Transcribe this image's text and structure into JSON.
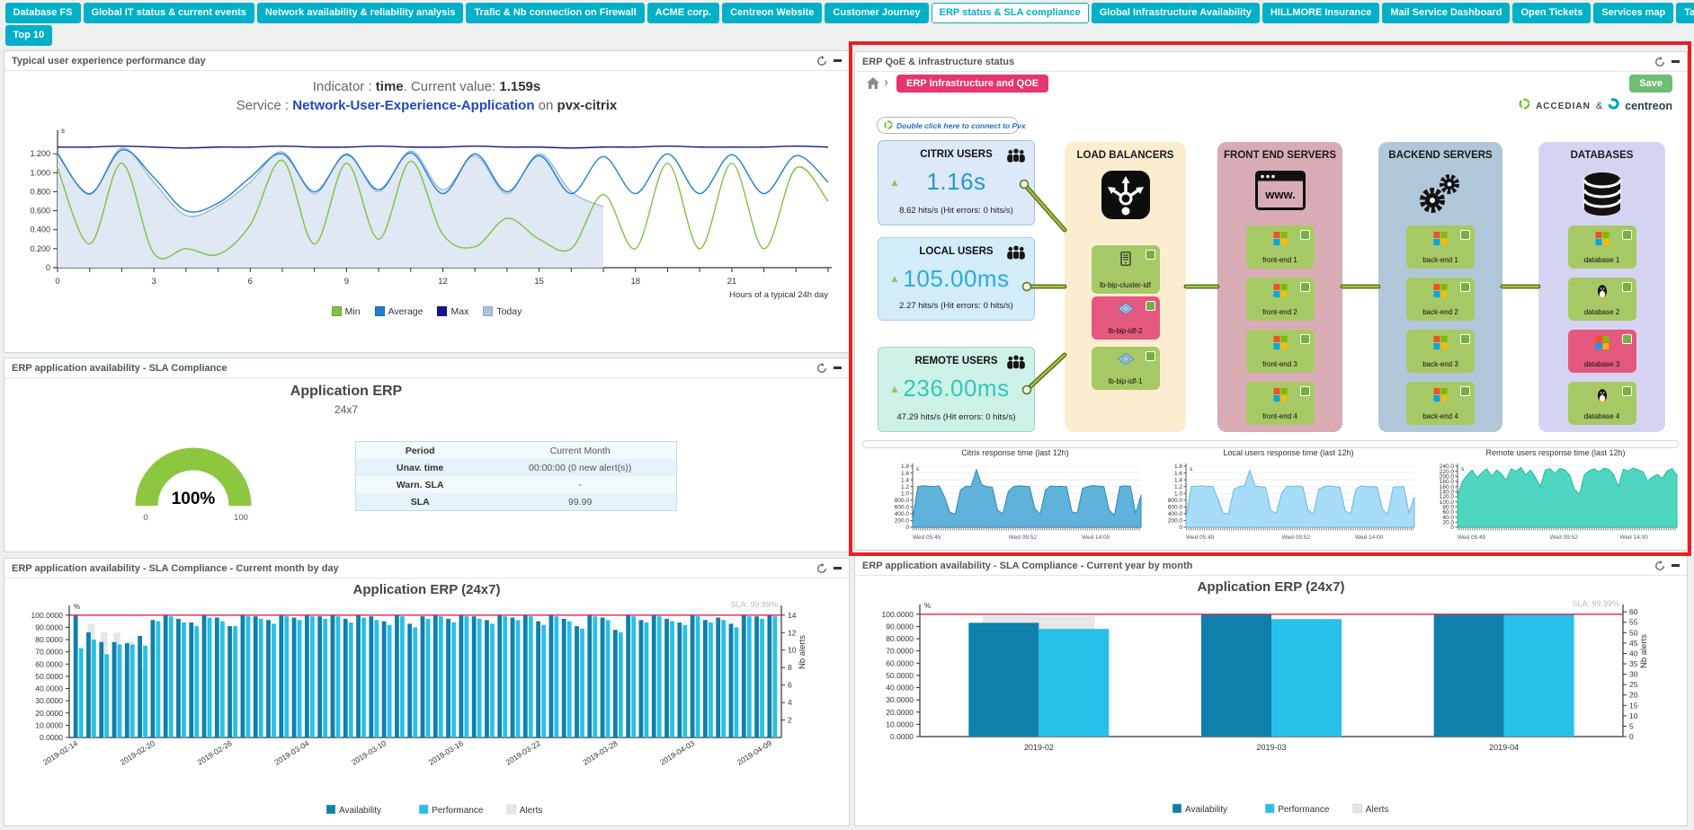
{
  "nav": {
    "active_tab": "ERP status & SLA compliance",
    "tabs_row1": [
      {
        "label": "Database FS"
      },
      {
        "label": "Global IT status & current events"
      },
      {
        "label": "Network availability & reliability analysis"
      },
      {
        "label": "Trafic & Nb connection on Firewall"
      },
      {
        "label": "ACME corp."
      },
      {
        "label": "Centreon Website"
      },
      {
        "label": "Customer Journey"
      },
      {
        "label": "ERP status & SLA compliance"
      },
      {
        "label": "Global Infrastructure Availability"
      },
      {
        "label": "HILLMORE Insurance"
      },
      {
        "label": "Mail Service Dashboard"
      },
      {
        "label": "Open Tickets"
      },
      {
        "label": "Services map"
      },
      {
        "label": "Tactical Overview"
      }
    ],
    "tabs_row2": [
      {
        "label": "Top 10"
      }
    ]
  },
  "panel_typical": {
    "title": "Typical user experience performance day",
    "line1_prefix": "Indicator : ",
    "line1_bold1": "time",
    "line1_mid": ". Current value: ",
    "line1_bold2": "1.159s",
    "line2_prefix": "Service : ",
    "line2_link": "Network-User-Experience-Application",
    "line2_mid": " on ",
    "line2_bold": "pvx-citrix"
  },
  "panel_sla": {
    "title": "ERP application availability - SLA Compliance",
    "chart_title": "Application ERP",
    "chart_subtitle": "24x7",
    "table": {
      "rows": [
        [
          "Period",
          "Current Month"
        ],
        [
          "Unav. time",
          "00:00:00 (0 new alert(s))"
        ],
        [
          "Warn. SLA",
          "-"
        ],
        [
          "SLA",
          "99.99"
        ]
      ]
    }
  },
  "panel_monthday": {
    "title": "ERP application availability - SLA Compliance - Current month by day",
    "chart_title": "Application ERP (24x7)"
  },
  "panel_yearmonth": {
    "title": "ERP application availability - SLA Compliance - Current year by month",
    "chart_title": "Application ERP (24x7)"
  },
  "panel_qoe": {
    "title": "ERP QoE & infrastructure status",
    "breadcrumb": "ERP Infrastructure and QOE",
    "save_label": "Save",
    "accedian": "ACCEDIAN",
    "ampersand": "&",
    "centreon": "centreon",
    "connect_label": "Double click here to connect to Pvx",
    "user_groups": [
      {
        "name": "CITRIX USERS",
        "value": "1.16s",
        "sub": "8.62 hits/s (Hit errors: 0 hits/s)",
        "bg": "#dbe9f9",
        "border": "#9fc3dd",
        "value_color": "#2796d8"
      },
      {
        "name": "LOCAL USERS",
        "value": "105.00ms",
        "sub": "2.27 hits/s (Hit errors: 0 hits/s)",
        "bg": "#d2ecfa",
        "border": "#9fd0e8",
        "value_color": "#2aabe0"
      },
      {
        "name": "REMOTE USERS",
        "value": "236.00ms",
        "sub": "47.29 hits/s (Hit errors: 0 hits/s)",
        "bg": "#cdf1e7",
        "border": "#96d8c6",
        "value_color": "#2fc9b6"
      }
    ],
    "columns": [
      {
        "title": "LOAD BALANCERS",
        "bg": "#fcedd0",
        "icon": "load-balancer",
        "nodes": [
          {
            "label": "lb-bip-cluster-idf",
            "icon": "server",
            "state": "ok"
          },
          {
            "label": "lb-bip-idf-2",
            "icon": "vip",
            "state": "critical"
          },
          {
            "label": "lb-bip-idf-1",
            "icon": "vip",
            "state": "ok"
          }
        ]
      },
      {
        "title": "FRONT END SERVERS",
        "bg": "#d9abb4",
        "icon": "browser",
        "nodes": [
          {
            "label": "front-end 1",
            "icon": "windows",
            "state": "ok"
          },
          {
            "label": "front-end 2",
            "icon": "windows",
            "state": "ok"
          },
          {
            "label": "front-end 3",
            "icon": "windows",
            "state": "ok"
          },
          {
            "label": "front-end 4",
            "icon": "windows",
            "state": "ok"
          }
        ]
      },
      {
        "title": "BACKEND SERVERS",
        "bg": "#afc7d8",
        "icon": "gears",
        "nodes": [
          {
            "label": "back-end 1",
            "icon": "windows",
            "state": "ok"
          },
          {
            "label": "back-end 2",
            "icon": "windows",
            "state": "ok"
          },
          {
            "label": "back-end 3",
            "icon": "windows",
            "state": "ok"
          },
          {
            "label": "back-end 4",
            "icon": "windows",
            "state": "ok"
          }
        ]
      },
      {
        "title": "DATABASES",
        "bg": "#d4d4f2",
        "icon": "database",
        "nodes": [
          {
            "label": "database 1",
            "icon": "windows",
            "state": "ok"
          },
          {
            "label": "database 2",
            "icon": "linux",
            "state": "ok"
          },
          {
            "label": "database 3",
            "icon": "windows",
            "state": "critical"
          },
          {
            "label": "database 4",
            "icon": "linux",
            "state": "ok"
          }
        ]
      }
    ]
  },
  "colors": {
    "accent_teal": "#00b0c8",
    "min": "#7dc242",
    "average": "#1f7ed0",
    "max": "#16168c",
    "today": "#a9c3e0",
    "availability": "#0f7fab",
    "performance": "#27c0e8",
    "alerts": "#e4e6e8",
    "sla_line": "#e6204e",
    "node_ok": "#a6c965",
    "node_critical": "#e4577e",
    "status_ok": "#76b041"
  },
  "chart_data": [
    {
      "id": "typical_day",
      "type": "line",
      "title": "Indicator : time. Current value: 1.159s — Service : Network-User-Experience-Application on pvx-citrix",
      "xlabel": "Hours of a typical 24h day",
      "ylabel": "s",
      "x": [
        0,
        1,
        2,
        3,
        4,
        5,
        6,
        7,
        8,
        9,
        10,
        11,
        12,
        13,
        14,
        15,
        16,
        17,
        18,
        19,
        20,
        21,
        22,
        23,
        24
      ],
      "xticks": [
        0,
        3,
        6,
        9,
        12,
        15,
        18,
        21
      ],
      "ylim": [
        0,
        1.4
      ],
      "ytick_labels": [
        "1.200",
        "1.000",
        "0.800",
        "0.600",
        "0.400",
        "0.200",
        "0"
      ],
      "ytick_values": [
        1.2,
        1.0,
        0.8,
        0.6,
        0.4,
        0.2,
        0
      ],
      "series": [
        {
          "name": "Min",
          "color": "#7dc242",
          "values": [
            1.05,
            0.25,
            1.1,
            0.15,
            0.2,
            0.14,
            0.45,
            1.13,
            0.25,
            1.1,
            0.3,
            1.12,
            0.35,
            0.22,
            0.52,
            0.3,
            0.2,
            0.77,
            0.2,
            1.1,
            0.2,
            1.1,
            0.2,
            1.05,
            0.7
          ]
        },
        {
          "name": "Average",
          "color": "#1f7ed0",
          "values": [
            1.2,
            0.78,
            1.24,
            0.95,
            0.6,
            0.68,
            0.95,
            1.2,
            0.8,
            1.19,
            0.82,
            1.21,
            0.78,
            1.2,
            0.8,
            1.18,
            0.78,
            1.17,
            0.78,
            1.2,
            0.78,
            1.19,
            0.78,
            1.18,
            0.9
          ]
        },
        {
          "name": "Max",
          "color": "#16168c",
          "values": [
            1.27,
            1.27,
            1.28,
            1.27,
            1.26,
            1.27,
            1.27,
            1.28,
            1.27,
            1.27,
            1.28,
            1.27,
            1.27,
            1.28,
            1.27,
            1.27,
            1.26,
            1.27,
            1.27,
            1.28,
            1.27,
            1.27,
            1.27,
            1.28,
            1.27
          ]
        },
        {
          "name": "Today",
          "color": "#a9c3e0",
          "area": true,
          "values": [
            1.21,
            0.77,
            1.26,
            0.9,
            0.55,
            0.65,
            0.9,
            1.22,
            0.78,
            1.2,
            0.8,
            1.23,
            0.82,
            1.18,
            0.78,
            1.2,
            0.8,
            0.64
          ]
        }
      ],
      "legend": [
        "Min",
        "Average",
        "Max",
        "Today"
      ]
    },
    {
      "id": "sla_gauge",
      "type": "gauge",
      "value": 100,
      "value_label": "100%",
      "min_label": "0",
      "max_label": "100",
      "color": "#8dc63f"
    },
    {
      "id": "citrix_mini",
      "type": "area",
      "title": "Citrix response time (last 12h)",
      "unit": "s",
      "ylim": [
        0,
        1.8
      ],
      "yticks": [
        "1.8",
        "1.6",
        "1.4",
        "1.2",
        "1.0",
        "800.0",
        "600.0",
        "400.0",
        "200.0",
        "0"
      ],
      "xtick_labels": [
        "Wed 05:45",
        "Wed 09:52",
        "Wed 14:00"
      ],
      "fill": "#5fb3da",
      "stroke": "#2e86b8",
      "values": [
        0.25,
        1.2,
        1.22,
        1.21,
        1.2,
        1.22,
        0.9,
        0.45,
        0.38,
        1.1,
        1.21,
        1.2,
        1.7,
        1.25,
        1.2,
        1.18,
        0.5,
        0.4,
        1.05,
        1.2,
        1.22,
        1.21,
        1.2,
        0.55,
        0.38,
        1.1,
        1.22,
        1.2,
        1.21,
        1.19,
        0.45,
        0.42,
        1.15,
        1.2,
        1.23,
        1.21,
        1.2,
        0.5,
        0.36,
        1.2,
        1.22,
        1.21,
        0.4,
        0.95
      ]
    },
    {
      "id": "local_mini",
      "type": "area",
      "title": "Local users response time (last 12h)",
      "unit": "s",
      "ylim": [
        0,
        1.8
      ],
      "yticks": [
        "1.8",
        "1.6",
        "1.4",
        "1.2",
        "1.0",
        "800.0",
        "600.0",
        "400.0",
        "200.0",
        "0"
      ],
      "xtick_labels": [
        "Wed 05:45",
        "Wed 09:52",
        "Wed 14:00"
      ],
      "fill": "#a6dcf7",
      "stroke": "#68b6e4",
      "values": [
        0.3,
        1.2,
        1.21,
        1.22,
        1.2,
        1.21,
        0.85,
        0.42,
        0.4,
        1.12,
        1.2,
        1.22,
        1.68,
        1.22,
        1.2,
        1.17,
        0.48,
        0.42,
        1.0,
        1.21,
        1.2,
        1.22,
        1.19,
        0.5,
        0.4,
        1.12,
        1.2,
        1.22,
        1.2,
        1.18,
        0.48,
        0.4,
        1.12,
        1.22,
        1.2,
        1.2,
        1.18,
        0.52,
        0.38,
        1.18,
        1.2,
        1.2,
        0.42,
        0.9
      ]
    },
    {
      "id": "remote_mini",
      "type": "area",
      "title": "Remote users response time (last 12h)",
      "unit": "s",
      "ylim": [
        0,
        240
      ],
      "yticks": [
        "240.0",
        "220.0",
        "200.0",
        "180.0",
        "160.0",
        "140.0",
        "120.0",
        "100.0",
        "80.0",
        "60.0",
        "40.0",
        "20.0",
        "0"
      ],
      "xtick_labels": [
        "Wed 05:45",
        "Wed 09:52",
        "Wed 14:00"
      ],
      "fill": "#4fd6c0",
      "stroke": "#25b8a2",
      "values": [
        125,
        180,
        205,
        225,
        195,
        215,
        230,
        200,
        225,
        210,
        185,
        230,
        220,
        235,
        205,
        225,
        195,
        160,
        225,
        230,
        210,
        232,
        225,
        205,
        150,
        130,
        205,
        222,
        230,
        218,
        232,
        228,
        208,
        160,
        228,
        222,
        233,
        226,
        218,
        182,
        198,
        208,
        192,
        222,
        230,
        205
      ]
    },
    {
      "id": "month_by_day",
      "type": "bar",
      "title": "Application ERP (24x7)",
      "sla_label": "SLA: 99.99%",
      "sla_value": 99.99,
      "right_axis_label": "Nb alerts",
      "right_ticks": [
        2,
        4,
        6,
        8,
        10,
        12,
        14
      ],
      "ylim": [
        0,
        105
      ],
      "label_every": 6,
      "legend": [
        "Availability",
        "Performance",
        "Alerts"
      ],
      "categories": [
        "2019-02-14",
        "2019-02-15",
        "2019-02-16",
        "2019-02-17",
        "2019-02-18",
        "2019-02-19",
        "2019-02-20",
        "2019-02-21",
        "2019-02-22",
        "2019-02-23",
        "2019-02-24",
        "2019-02-25",
        "2019-02-26",
        "2019-02-27",
        "2019-02-28",
        "2019-03-01",
        "2019-03-02",
        "2019-03-03",
        "2019-03-04",
        "2019-03-05",
        "2019-03-06",
        "2019-03-07",
        "2019-03-08",
        "2019-03-09",
        "2019-03-10",
        "2019-03-11",
        "2019-03-12",
        "2019-03-13",
        "2019-03-14",
        "2019-03-15",
        "2019-03-16",
        "2019-03-17",
        "2019-03-18",
        "2019-03-19",
        "2019-03-20",
        "2019-03-21",
        "2019-03-22",
        "2019-03-23",
        "2019-03-24",
        "2019-03-25",
        "2019-03-26",
        "2019-03-27",
        "2019-03-28",
        "2019-03-29",
        "2019-03-30",
        "2019-03-31",
        "2019-04-01",
        "2019-04-02",
        "2019-04-03",
        "2019-04-04",
        "2019-04-05",
        "2019-04-06",
        "2019-04-07",
        "2019-04-08",
        "2019-04-09"
      ],
      "series": [
        {
          "name": "Availability",
          "color": "#0f7fab",
          "values": [
            100,
            86,
            78,
            78,
            77,
            83,
            96,
            100,
            97,
            94,
            100,
            98,
            91,
            100,
            99,
            96,
            100,
            98,
            100,
            99,
            100,
            97,
            100,
            99,
            95,
            100,
            93,
            99,
            100,
            97,
            100,
            99,
            96,
            100,
            98,
            100,
            95,
            100,
            97,
            91,
            100,
            98,
            88,
            100,
            96,
            100,
            97,
            94,
            100,
            96,
            98,
            93,
            100,
            99,
            100
          ]
        },
        {
          "name": "Performance",
          "color": "#27c0e8",
          "values": [
            73,
            80,
            68,
            76,
            76,
            75,
            95,
            99,
            94,
            91,
            98,
            95,
            91,
            99,
            97,
            93,
            99,
            96,
            99,
            97,
            99,
            94,
            98,
            96,
            92,
            99,
            90,
            97,
            99,
            94,
            99,
            97,
            93,
            99,
            96,
            99,
            92,
            99,
            95,
            89,
            99,
            96,
            86,
            99,
            94,
            99,
            95,
            92,
            99,
            94,
            96,
            90,
            99,
            97,
            99
          ]
        },
        {
          "name": "Alerts",
          "color": "#e4e6e8",
          "axis": "right",
          "values": [
            0,
            13,
            12,
            12,
            11,
            8,
            0,
            0,
            0,
            0,
            0,
            0,
            0,
            0,
            0,
            0,
            0,
            0,
            0,
            0,
            0,
            0,
            0,
            0,
            0,
            0,
            0,
            0,
            0,
            0,
            0,
            0,
            0,
            0,
            0,
            0,
            0,
            0,
            0,
            0,
            0,
            0,
            0,
            0,
            0,
            0,
            0,
            0,
            0,
            0,
            0,
            0,
            0,
            0,
            0
          ]
        }
      ]
    },
    {
      "id": "year_by_month",
      "type": "bar",
      "title": "Application ERP (24x7)",
      "sla_label": "SLA: 99.99%",
      "sla_value": 99.99,
      "right_axis_label": "Nb alerts",
      "right_ticks": [
        0,
        5,
        10,
        15,
        20,
        25,
        30,
        35,
        40,
        45,
        50,
        55,
        60
      ],
      "ylim": [
        0,
        105
      ],
      "legend": [
        "Availability",
        "Performance",
        "Alerts"
      ],
      "categories": [
        "2019-02",
        "2019-03",
        "2019-04"
      ],
      "series": [
        {
          "name": "Availability",
          "color": "#0f7fab",
          "values": [
            93,
            100,
            100
          ]
        },
        {
          "name": "Performance",
          "color": "#27c0e8",
          "values": [
            88,
            96,
            100
          ]
        },
        {
          "name": "Alerts",
          "color": "#e4e6e8",
          "axis": "right",
          "values": [
            58,
            0,
            0
          ]
        }
      ]
    }
  ]
}
